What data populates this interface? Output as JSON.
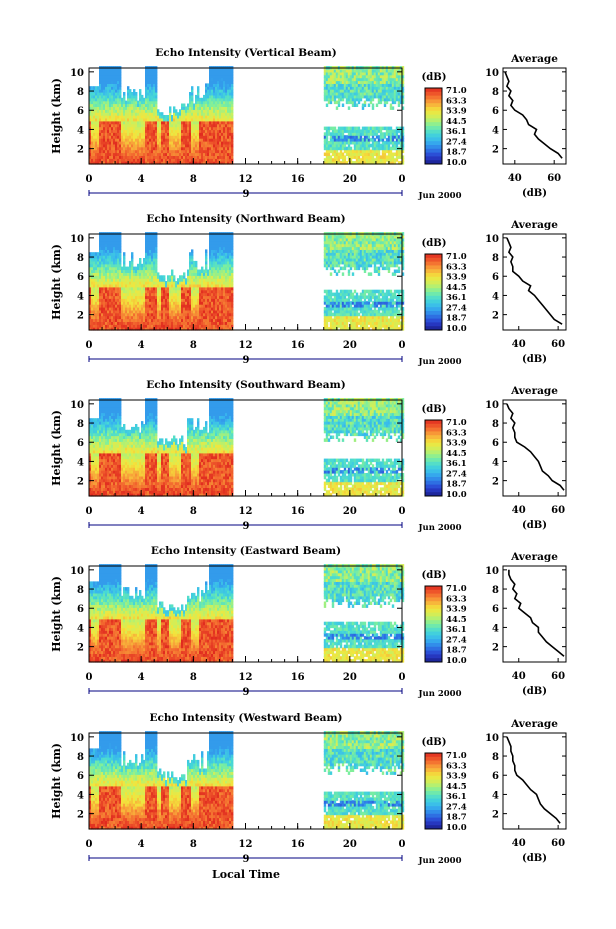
{
  "chart_data": {
    "type": "heatmap",
    "x_tick_labels": [
      "0",
      "4",
      "8",
      "12",
      "16",
      "20",
      "0"
    ],
    "x_date_label": "9",
    "month_label": "Jun 2000",
    "xlabel": "Local Time",
    "ylabel": "Height (km)",
    "y_tick_labels": [
      "2",
      "4",
      "6",
      "8",
      "10"
    ],
    "ylim": [
      0.4,
      10.4
    ],
    "colorbar": {
      "label": "(dB)",
      "ticks": [
        "71.0",
        "63.3",
        "53.9",
        "44.5",
        "36.1",
        "27.4",
        "18.7",
        "10.0"
      ],
      "range": [
        10.0,
        71.0
      ]
    },
    "coverage_hours": [
      [
        0,
        11
      ],
      [
        18,
        24
      ]
    ],
    "average_profile": {
      "title": "Average",
      "xlabel": "(dB)",
      "y_tick_labels": [
        "2",
        "4",
        "6",
        "8",
        "10"
      ]
    },
    "panels": [
      {
        "title": "Echo Intensity (Vertical Beam)",
        "avg_x_ticks": [
          "40",
          "60"
        ],
        "avg_xlim": [
          34,
          66
        ],
        "avg_profile": {
          "height": [
            1.0,
            1.5,
            2.0,
            2.5,
            3.0,
            3.5,
            4.0,
            4.5,
            5.0,
            5.5,
            6.0,
            6.5,
            7.0,
            7.5,
            8.0,
            8.5,
            9.0,
            9.5,
            10.0
          ],
          "db": [
            64,
            62,
            58,
            55,
            52,
            50,
            51,
            47,
            46,
            44,
            40,
            38,
            39,
            37,
            38,
            36,
            37,
            36,
            35
          ]
        }
      },
      {
        "title": "Echo Intensity (Northward Beam)",
        "avg_x_ticks": [
          "40",
          "60"
        ],
        "avg_xlim": [
          32,
          64
        ],
        "avg_profile": {
          "height": [
            1.0,
            1.5,
            2.0,
            2.5,
            3.0,
            3.5,
            4.0,
            4.5,
            5.0,
            5.5,
            6.0,
            6.5,
            7.0,
            7.5,
            8.0,
            8.5,
            9.0,
            9.5,
            10.0
          ],
          "db": [
            62,
            58,
            56,
            54,
            52,
            50,
            48,
            45,
            46,
            42,
            40,
            37,
            37,
            36,
            37,
            35,
            36,
            35,
            34
          ]
        }
      },
      {
        "title": "Echo Intensity (Southward Beam)",
        "avg_x_ticks": [
          "40",
          "60"
        ],
        "avg_xlim": [
          32,
          64
        ],
        "avg_profile": {
          "height": [
            1.0,
            1.5,
            2.0,
            2.5,
            3.0,
            3.5,
            4.0,
            4.5,
            5.0,
            5.5,
            6.0,
            6.5,
            7.0,
            7.5,
            8.0,
            8.5,
            9.0,
            9.5,
            10.0
          ],
          "db": [
            63,
            61,
            57,
            55,
            52,
            51,
            50,
            48,
            46,
            43,
            39,
            38,
            38,
            37,
            38,
            36,
            37,
            35,
            34
          ]
        }
      },
      {
        "title": "Echo Intensity (Eastward Beam)",
        "avg_x_ticks": [
          "40",
          "60"
        ],
        "avg_xlim": [
          32,
          64
        ],
        "avg_profile": {
          "height": [
            1.0,
            1.5,
            2.0,
            2.5,
            3.0,
            3.5,
            4.0,
            4.5,
            5.0,
            5.5,
            6.0,
            6.5,
            7.0,
            7.5,
            8.0,
            8.5,
            9.0,
            9.5,
            10.0
          ],
          "db": [
            63,
            60,
            57,
            54,
            52,
            50,
            50,
            47,
            46,
            43,
            40,
            41,
            38,
            39,
            37,
            38,
            36,
            35,
            35
          ]
        }
      },
      {
        "title": "Echo Intensity (Westward Beam)",
        "avg_x_ticks": [
          "40",
          "60"
        ],
        "avg_xlim": [
          32,
          64
        ],
        "avg_profile": {
          "height": [
            1.0,
            1.5,
            2.0,
            2.5,
            3.0,
            3.5,
            4.0,
            4.5,
            5.0,
            5.5,
            6.0,
            6.5,
            7.0,
            7.5,
            8.0,
            8.5,
            9.0,
            9.5,
            10.0
          ],
          "db": [
            61,
            59,
            56,
            53,
            51,
            50,
            49,
            46,
            44,
            42,
            39,
            38,
            38,
            37,
            37,
            36,
            36,
            35,
            34
          ]
        }
      }
    ]
  },
  "colors": {
    "colormap": [
      "#1a1f8c",
      "#2a3fd0",
      "#2f7fe8",
      "#37b6ee",
      "#46d8d6",
      "#7cef9e",
      "#c8f060",
      "#f3e53c",
      "#f8a83a",
      "#f2632e",
      "#e02a1f"
    ],
    "axis": "#000000",
    "timeline": "#000080"
  }
}
